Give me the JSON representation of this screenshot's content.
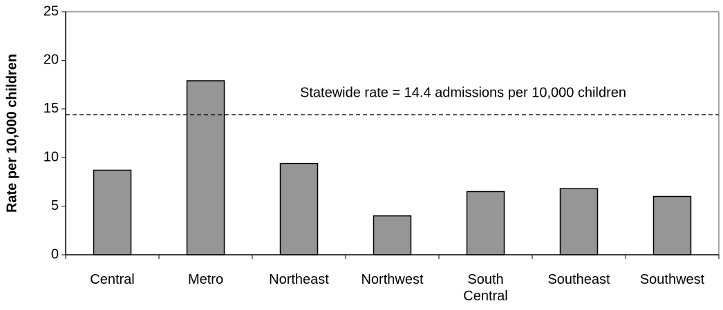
{
  "chart_data": {
    "type": "bar",
    "y_label": "Rate per 10,000 children",
    "categories": [
      "Central",
      "Metro",
      "Northeast",
      "Northwest",
      "South Central",
      "Southeast",
      "Southwest"
    ],
    "values": [
      8.7,
      17.9,
      9.4,
      4.0,
      6.5,
      6.8,
      6.0
    ],
    "color": "#969696",
    "ylim": [
      0,
      25
    ],
    "yticks": [
      0,
      5,
      10,
      15,
      20,
      25
    ],
    "reference_line": {
      "value": 14.4,
      "label": "Statewide rate = 14.4 admissions per 10,000 children"
    }
  }
}
